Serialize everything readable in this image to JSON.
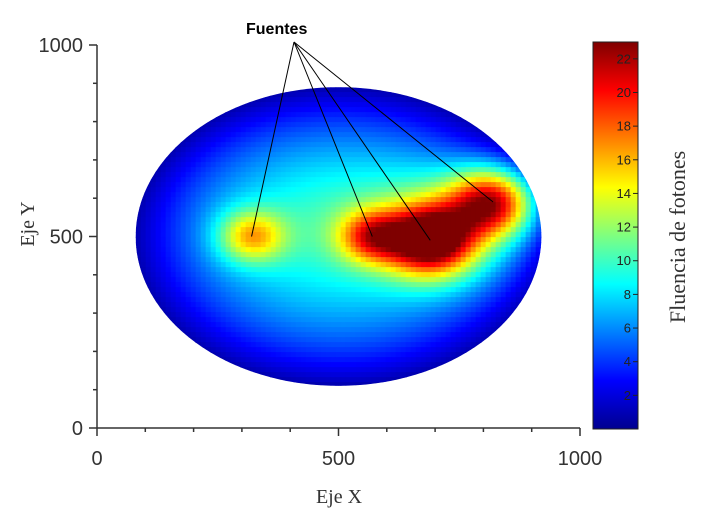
{
  "chart_data": {
    "type": "heatmap",
    "title": "",
    "xlabel": "Eje X",
    "ylabel": "Eje Y",
    "xlim": [
      0,
      1000
    ],
    "ylim": [
      0,
      1000
    ],
    "x_ticks": [
      "0",
      "500",
      "1000"
    ],
    "y_ticks": [
      "0",
      "500",
      "1000"
    ],
    "colorbar": {
      "label": "Fluencia de fotones",
      "range": [
        0,
        23
      ],
      "ticks": [
        "2",
        "4",
        "6",
        "8",
        "10",
        "12",
        "14",
        "16",
        "18",
        "20",
        "22"
      ],
      "colormap": "jet"
    },
    "domain_ellipse": {
      "center": [
        500,
        500
      ],
      "radius_x": 420,
      "radius_y": 390
    },
    "sources": [
      {
        "x": 320,
        "y": 500,
        "value": 14.5
      },
      {
        "x": 570,
        "y": 500,
        "value": 15.5
      },
      {
        "x": 690,
        "y": 490,
        "value": 22
      },
      {
        "x": 820,
        "y": 590,
        "value": 21
      }
    ],
    "background_level": 8,
    "annotation": {
      "text": "Fuentes"
    }
  }
}
